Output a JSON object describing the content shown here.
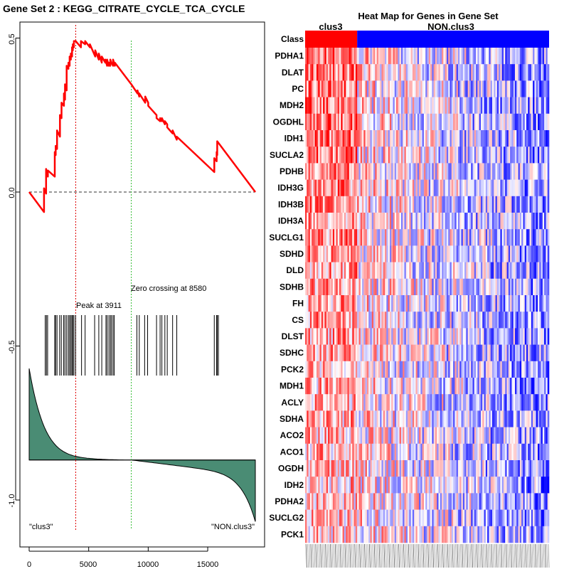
{
  "left_panel": {
    "title": "Gene Set  2 : KEGG_CITRATE_CYCLE_TCA_CYCLE",
    "peak_label": "Peak at 3911",
    "zero_label": "Zero crossing at 8580",
    "left_class_label": "\"clus3\"",
    "right_class_label": "\"NON.clus3\"",
    "y_tick_labels": [
      "0.5",
      "0.0",
      "-0.5",
      "-1.0"
    ],
    "x_tick_labels": [
      "0",
      "5000",
      "10000",
      "15000"
    ],
    "colors": {
      "es_curve": "#ff0000",
      "peak_line": "#dd0000",
      "zero_line": "#33bb33",
      "fill": "#4a8c74",
      "hits": "#000000"
    }
  },
  "right_panel": {
    "title": "Heat Map for Genes in Gene Set",
    "class_row_label": "Class",
    "class1_label": "clus3",
    "class2_label": "NON.clus3",
    "genes": [
      "PDHA1",
      "DLAT",
      "PC",
      "MDH2",
      "OGDHL",
      "IDH1",
      "SUCLA2",
      "PDHB",
      "IDH3G",
      "IDH3B",
      "IDH3A",
      "SUCLG1",
      "SDHD",
      "DLD",
      "SDHB",
      "FH",
      "CS",
      "DLST",
      "SDHC",
      "PCK2",
      "MDH1",
      "ACLY",
      "SDHA",
      "ACO2",
      "ACO1",
      "OGDH",
      "IDH2",
      "PDHA2",
      "SUCLG2",
      "PCK1"
    ],
    "colors": {
      "class1": "#ff0000",
      "class2": "#0000ff"
    }
  },
  "chart_data": [
    {
      "type": "line",
      "title": "Gene Set  2 : KEGG_CITRATE_CYCLE_TCA_CYCLE",
      "xlabel": "",
      "ylabel": "",
      "xlim": [
        0,
        19000
      ],
      "ylim": [
        -1.1,
        0.52
      ],
      "x_ticks": [
        0,
        5000,
        10000,
        15000
      ],
      "y_ticks": [
        0.5,
        0.0,
        -0.5,
        -1.0
      ],
      "series": [
        {
          "name": "running enrichment score",
          "x": [
            0,
            1250,
            1250,
            1420,
            1420,
            1570,
            1570,
            2150,
            2150,
            2230,
            2230,
            2340,
            2340,
            2590,
            2590,
            2720,
            2720,
            2920,
            2920,
            3010,
            3010,
            3150,
            3150,
            3300,
            3300,
            3400,
            3400,
            3500,
            3500,
            3600,
            3600,
            3670,
            3670,
            3760,
            3760,
            3911,
            4350,
            4350,
            4700,
            4700,
            5100,
            5100,
            5550,
            5550,
            5850,
            5850,
            6100,
            6100,
            6400,
            6400,
            6550,
            6550,
            6700,
            6700,
            6820,
            6820,
            6900,
            6900,
            7050,
            7050,
            7200,
            7200,
            8580,
            9100,
            9100,
            9250,
            9250,
            9750,
            9750,
            10000,
            10000,
            10700,
            10700,
            11000,
            11000,
            11150,
            11150,
            11400,
            11400,
            11600,
            11600,
            12050,
            12050,
            12400,
            12400,
            15550,
            15550,
            15750,
            15750,
            15800,
            15800,
            19000
          ],
          "y": [
            0.0,
            -0.065,
            0.012,
            -0.005,
            0.075,
            0.05,
            0.07,
            0.05,
            0.13,
            0.12,
            0.15,
            0.14,
            0.2,
            0.18,
            0.25,
            0.24,
            0.29,
            0.28,
            0.32,
            0.3,
            0.35,
            0.33,
            0.41,
            0.4,
            0.42,
            0.41,
            0.44,
            0.43,
            0.45,
            0.44,
            0.47,
            0.46,
            0.48,
            0.47,
            0.49,
            0.49,
            0.47,
            0.49,
            0.48,
            0.49,
            0.47,
            0.48,
            0.44,
            0.46,
            0.43,
            0.45,
            0.42,
            0.44,
            0.42,
            0.43,
            0.41,
            0.43,
            0.41,
            0.42,
            0.41,
            0.43,
            0.42,
            0.42,
            0.41,
            0.43,
            0.41,
            0.42,
            0.35,
            0.32,
            0.33,
            0.31,
            0.32,
            0.29,
            0.31,
            0.29,
            0.28,
            0.25,
            0.24,
            0.23,
            0.24,
            0.23,
            0.24,
            0.22,
            0.23,
            0.22,
            0.21,
            0.19,
            0.2,
            0.17,
            0.18,
            0.065,
            0.11,
            0.1,
            0.13,
            0.12,
            0.165,
            0.0
          ]
        }
      ],
      "baseline": 0.0,
      "peak_x": 3911,
      "zero_crossing_x": 8580,
      "hits": [
        1350,
        1450,
        1550,
        2150,
        2220,
        2340,
        2560,
        2700,
        2900,
        3010,
        3150,
        3290,
        3390,
        3500,
        3590,
        3670,
        3760,
        3900,
        4400,
        4700,
        5500,
        5850,
        6100,
        6450,
        6550,
        6700,
        6820,
        6920,
        7050,
        7150,
        9050,
        9250,
        9700,
        9950,
        10700,
        11000,
        11150,
        11400,
        11600,
        12050,
        12400,
        15550,
        15750,
        15800,
        15900
      ],
      "ranked_metric": {
        "start": -0.6,
        "min": -1.07,
        "baseline": -0.87,
        "zero_crossing_x": 8580
      },
      "annotations": [
        "Peak at 3911",
        "Zero crossing at 8580",
        "\"clus3\"",
        "\"NON.clus3\""
      ]
    },
    {
      "type": "heatmap",
      "title": "Heat Map for Genes in Gene Set",
      "rows": [
        "PDHA1",
        "DLAT",
        "PC",
        "MDH2",
        "OGDHL",
        "IDH1",
        "SUCLA2",
        "PDHB",
        "IDH3G",
        "IDH3B",
        "IDH3A",
        "SUCLG1",
        "SDHD",
        "DLD",
        "SDHB",
        "FH",
        "CS",
        "DLST",
        "SDHC",
        "PCK2",
        "MDH1",
        "ACLY",
        "SDHA",
        "ACO2",
        "ACO1",
        "OGDH",
        "IDH2",
        "PDHA2",
        "SUCLG2",
        "PCK1"
      ],
      "class_labels": [
        "clus3",
        "NON.clus3"
      ],
      "n_samples": 150,
      "n_class1": 32
    }
  ]
}
